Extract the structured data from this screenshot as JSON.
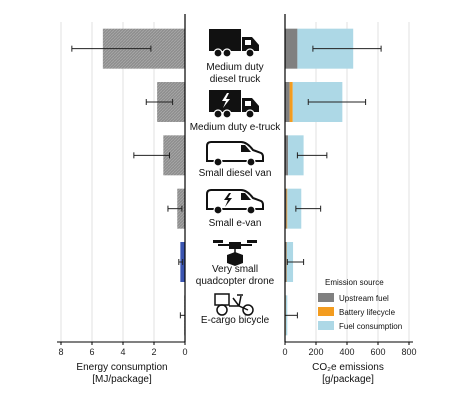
{
  "chart_data": {
    "type": "bar",
    "orientation": "horizontal",
    "categories": [
      [
        "Medium duty",
        "diesel truck"
      ],
      [
        "Medium duty e-truck"
      ],
      [
        "Small diesel van"
      ],
      [
        "Small e-van"
      ],
      [
        "Very small",
        "quadcopter drone"
      ],
      [
        "E-cargo bicycle"
      ]
    ],
    "icons": [
      "truck-icon",
      "electric-truck-icon",
      "van-icon",
      "electric-van-icon",
      "drone-icon",
      "cargo-bicycle-icon"
    ],
    "energy": {
      "xlabel_lines": [
        "Energy consumption",
        "[MJ/package]"
      ],
      "ticks": [
        8,
        6,
        4,
        2,
        0
      ],
      "xlim": [
        0,
        8
      ],
      "inverted": true,
      "grid": true,
      "values": [
        5.3,
        1.8,
        1.4,
        0.5,
        0.3,
        0.05
      ],
      "errors": [
        [
          2.2,
          7.3
        ],
        [
          0.8,
          2.5
        ],
        [
          1.0,
          3.3
        ],
        [
          0.2,
          1.1
        ],
        [
          0.15,
          0.4
        ],
        [
          0.0,
          0.3
        ]
      ],
      "colors": [
        "#9a9a9a",
        "#9a9a9a",
        "#9a9a9a",
        "#9a9a9a",
        "#3b55b0",
        "#9a9a9a"
      ]
    },
    "emissions": {
      "xlabel_lines": [
        "CO₂e emissions",
        "[g/package]"
      ],
      "ticks": [
        0,
        200,
        400,
        600,
        800
      ],
      "xlim": [
        0,
        800
      ],
      "grid": true,
      "series": [
        {
          "name": "Upstream fuel",
          "color": "#808080",
          "values": [
            80,
            30,
            20,
            10,
            10,
            3
          ]
        },
        {
          "name": "Battery lifecycle",
          "color": "#f39c1f",
          "values": [
            0,
            20,
            0,
            5,
            2,
            2
          ]
        },
        {
          "name": "Fuel consumption",
          "color": "#add8e6",
          "values": [
            360,
            320,
            100,
            90,
            40,
            10
          ]
        }
      ],
      "errors": [
        [
          180,
          620
        ],
        [
          150,
          520
        ],
        [
          80,
          270
        ],
        [
          70,
          230
        ],
        [
          15,
          120
        ],
        [
          0,
          80
        ]
      ]
    },
    "legend": {
      "title": "Emission source",
      "position": "bottom-right",
      "items": [
        "Upstream fuel",
        "Battery lifecycle",
        "Fuel consumption"
      ]
    }
  }
}
